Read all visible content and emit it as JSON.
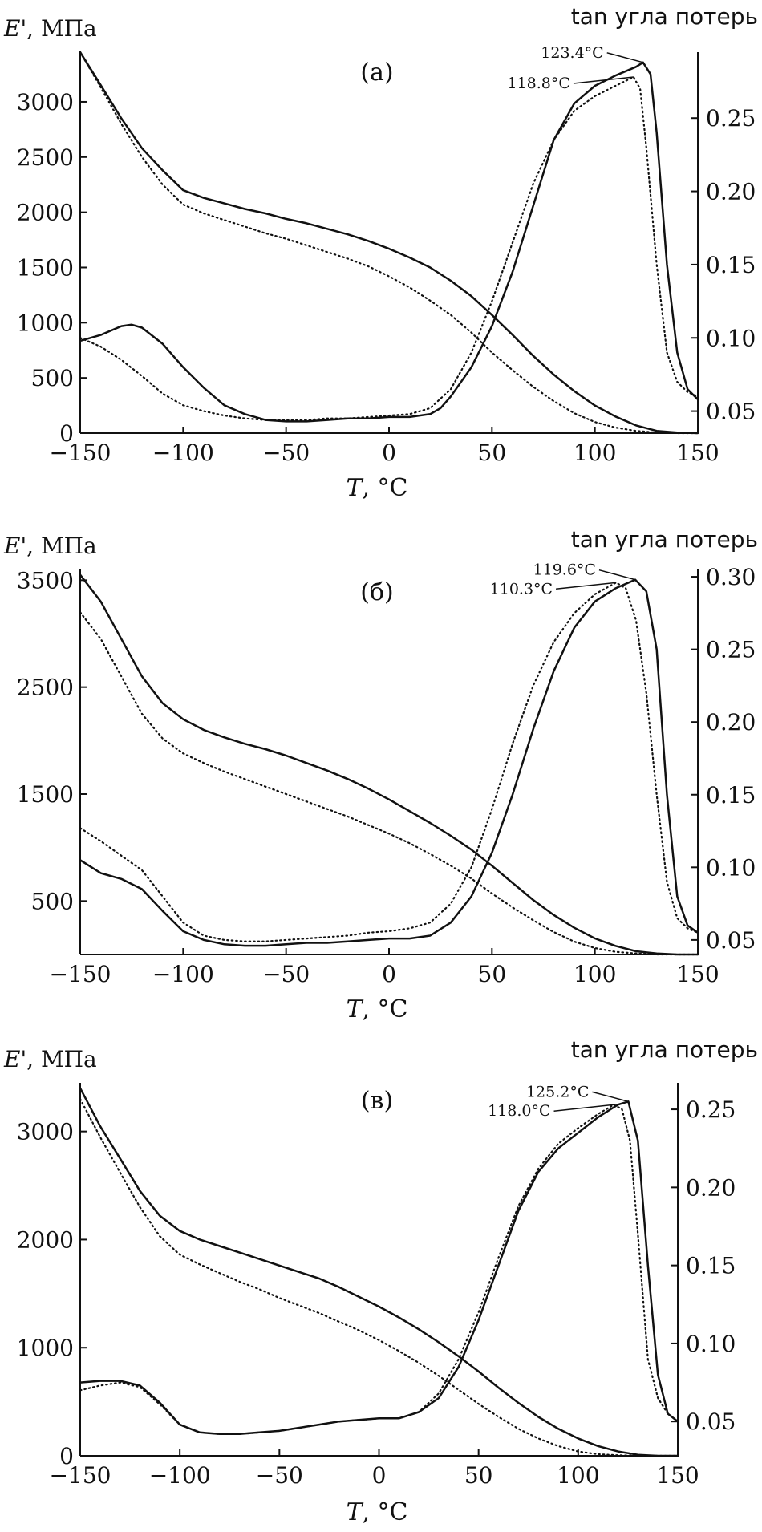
{
  "chart_data": [
    {
      "type": "line",
      "panel_label": "(а)",
      "xlabel_var": "T",
      "xlabel_unit": ", °C",
      "ylabel_var": "E'",
      "ylabel_unit": ", МПа",
      "y2label": "tan угла потерь",
      "xlim": [
        -150,
        150
      ],
      "ylim": [
        0,
        3450
      ],
      "y2lim": [
        0.035,
        0.295
      ],
      "xticks": [
        -150,
        -100,
        -50,
        0,
        50,
        100,
        150
      ],
      "yticks": [
        0,
        500,
        1000,
        1500,
        2000,
        2500,
        3000
      ],
      "y2ticks": [
        0.05,
        0.1,
        0.15,
        0.2,
        0.25
      ],
      "y2tick_labels": [
        "0.05",
        "0.10",
        "0.15",
        "0.20",
        "0.25"
      ],
      "series": [
        {
          "style": "solid",
          "axis": "left",
          "x": [
            -150,
            -140,
            -130,
            -120,
            -110,
            -100,
            -90,
            -80,
            -70,
            -60,
            -50,
            -40,
            -30,
            -20,
            -10,
            0,
            10,
            20,
            30,
            40,
            50,
            60,
            70,
            80,
            90,
            100,
            110,
            120,
            130,
            140,
            150
          ],
          "y": [
            3450,
            3150,
            2850,
            2580,
            2380,
            2200,
            2130,
            2080,
            2030,
            1990,
            1940,
            1900,
            1850,
            1800,
            1740,
            1670,
            1590,
            1500,
            1380,
            1240,
            1070,
            890,
            700,
            530,
            380,
            250,
            150,
            70,
            20,
            5,
            0
          ]
        },
        {
          "style": "dotted",
          "axis": "left",
          "x": [
            -150,
            -140,
            -130,
            -120,
            -110,
            -100,
            -90,
            -80,
            -70,
            -60,
            -50,
            -40,
            -30,
            -20,
            -10,
            0,
            10,
            20,
            30,
            40,
            50,
            60,
            70,
            80,
            90,
            100,
            110,
            120,
            130,
            140,
            150
          ],
          "y": [
            3450,
            3130,
            2800,
            2500,
            2250,
            2070,
            1990,
            1930,
            1870,
            1810,
            1760,
            1700,
            1640,
            1580,
            1510,
            1420,
            1320,
            1200,
            1070,
            910,
            730,
            570,
            420,
            290,
            180,
            100,
            50,
            20,
            5,
            0,
            0
          ]
        },
        {
          "style": "solid",
          "axis": "right",
          "x": [
            -150,
            -140,
            -130,
            -125,
            -120,
            -110,
            -100,
            -90,
            -80,
            -70,
            -60,
            -50,
            -40,
            -30,
            -20,
            -10,
            0,
            10,
            20,
            25,
            30,
            40,
            50,
            60,
            70,
            80,
            90,
            100,
            110,
            120,
            123.4,
            127,
            130,
            135,
            140,
            145,
            150
          ],
          "y": [
            0.098,
            0.102,
            0.108,
            0.109,
            0.107,
            0.096,
            0.08,
            0.066,
            0.054,
            0.048,
            0.044,
            0.043,
            0.043,
            0.044,
            0.045,
            0.045,
            0.046,
            0.046,
            0.048,
            0.052,
            0.06,
            0.08,
            0.108,
            0.145,
            0.19,
            0.235,
            0.26,
            0.272,
            0.279,
            0.285,
            0.288,
            0.28,
            0.24,
            0.15,
            0.09,
            0.065,
            0.058
          ]
        },
        {
          "style": "dotted",
          "axis": "right",
          "x": [
            -150,
            -140,
            -130,
            -120,
            -110,
            -100,
            -90,
            -80,
            -70,
            -60,
            -50,
            -40,
            -30,
            -20,
            -10,
            0,
            10,
            20,
            30,
            40,
            50,
            60,
            70,
            80,
            90,
            100,
            110,
            118.8,
            122,
            125,
            130,
            135,
            140,
            145,
            150
          ],
          "y": [
            0.1,
            0.094,
            0.085,
            0.074,
            0.062,
            0.054,
            0.05,
            0.047,
            0.045,
            0.044,
            0.044,
            0.044,
            0.045,
            0.045,
            0.046,
            0.047,
            0.048,
            0.052,
            0.065,
            0.09,
            0.125,
            0.165,
            0.205,
            0.235,
            0.255,
            0.265,
            0.272,
            0.278,
            0.27,
            0.23,
            0.15,
            0.09,
            0.07,
            0.063,
            0.06
          ]
        }
      ],
      "annotations": [
        {
          "text": "123.4°C",
          "x": 123.4,
          "y2": 0.288
        },
        {
          "text": "118.8°C",
          "x": 118.8,
          "y2": 0.278
        }
      ]
    },
    {
      "type": "line",
      "panel_label": "(б)",
      "xlabel_var": "T",
      "xlabel_unit": ", °C",
      "ylabel_var": "E'",
      "ylabel_unit": ", МПа",
      "y2label": "tan угла потерь",
      "xlim": [
        -150,
        150
      ],
      "ylim": [
        0,
        3600
      ],
      "y2lim": [
        0.04,
        0.305
      ],
      "xticks": [
        -150,
        -100,
        -50,
        0,
        50,
        100,
        150
      ],
      "yticks": [
        500,
        1500,
        2500,
        3500
      ],
      "y2ticks": [
        0.05,
        0.1,
        0.15,
        0.2,
        0.25,
        0.3
      ],
      "y2tick_labels": [
        "0.05",
        "0.10",
        "0.15",
        "0.20",
        "0.25",
        "0.30"
      ],
      "series": [
        {
          "style": "solid",
          "axis": "left",
          "x": [
            -150,
            -140,
            -130,
            -120,
            -110,
            -100,
            -90,
            -80,
            -70,
            -60,
            -50,
            -40,
            -30,
            -20,
            -10,
            0,
            10,
            20,
            30,
            40,
            50,
            60,
            70,
            80,
            90,
            100,
            110,
            120,
            130,
            140,
            150
          ],
          "y": [
            3550,
            3300,
            2950,
            2600,
            2350,
            2200,
            2100,
            2030,
            1970,
            1920,
            1860,
            1790,
            1720,
            1640,
            1550,
            1450,
            1340,
            1230,
            1110,
            980,
            830,
            670,
            510,
            370,
            250,
            150,
            80,
            30,
            10,
            0,
            0
          ]
        },
        {
          "style": "dotted",
          "axis": "left",
          "x": [
            -150,
            -140,
            -130,
            -120,
            -110,
            -100,
            -90,
            -80,
            -70,
            -60,
            -50,
            -40,
            -30,
            -20,
            -10,
            0,
            10,
            20,
            30,
            40,
            50,
            60,
            70,
            80,
            90,
            100,
            110,
            120,
            130,
            140,
            150
          ],
          "y": [
            3200,
            2950,
            2600,
            2250,
            2020,
            1880,
            1790,
            1710,
            1640,
            1570,
            1500,
            1430,
            1360,
            1290,
            1210,
            1130,
            1040,
            940,
            830,
            710,
            570,
            440,
            320,
            210,
            120,
            60,
            25,
            10,
            0,
            0,
            0
          ]
        },
        {
          "style": "solid",
          "axis": "right",
          "x": [
            -150,
            -140,
            -130,
            -120,
            -110,
            -100,
            -90,
            -80,
            -70,
            -60,
            -50,
            -40,
            -30,
            -20,
            -10,
            0,
            10,
            20,
            30,
            40,
            50,
            60,
            70,
            80,
            90,
            100,
            110,
            119.6,
            125,
            130,
            135,
            140,
            145,
            150
          ],
          "y": [
            0.105,
            0.096,
            0.092,
            0.085,
            0.07,
            0.056,
            0.05,
            0.047,
            0.046,
            0.046,
            0.047,
            0.048,
            0.048,
            0.049,
            0.05,
            0.051,
            0.051,
            0.053,
            0.062,
            0.08,
            0.11,
            0.15,
            0.195,
            0.235,
            0.265,
            0.283,
            0.292,
            0.298,
            0.29,
            0.25,
            0.15,
            0.08,
            0.06,
            0.055
          ]
        },
        {
          "style": "dotted",
          "axis": "right",
          "x": [
            -150,
            -140,
            -130,
            -120,
            -110,
            -100,
            -90,
            -80,
            -70,
            -60,
            -50,
            -40,
            -30,
            -20,
            -10,
            0,
            10,
            20,
            30,
            40,
            50,
            60,
            70,
            80,
            90,
            100,
            110.3,
            115,
            120,
            125,
            130,
            135,
            140,
            145,
            150
          ],
          "y": [
            0.127,
            0.118,
            0.108,
            0.098,
            0.08,
            0.062,
            0.053,
            0.05,
            0.049,
            0.049,
            0.05,
            0.051,
            0.052,
            0.053,
            0.055,
            0.056,
            0.058,
            0.062,
            0.075,
            0.1,
            0.14,
            0.185,
            0.225,
            0.255,
            0.275,
            0.288,
            0.296,
            0.292,
            0.27,
            0.22,
            0.15,
            0.09,
            0.065,
            0.058,
            0.055
          ]
        }
      ],
      "annotations": [
        {
          "text": "119.6°C",
          "x": 119.6,
          "y2": 0.298
        },
        {
          "text": "110.3°C",
          "x": 110.3,
          "y2": 0.296
        }
      ]
    },
    {
      "type": "line",
      "panel_label": "(в)",
      "xlabel_var": "T",
      "xlabel_unit": ", °C",
      "ylabel_var": "E'",
      "ylabel_unit": ", МПа",
      "y2label": "tan угла потерь",
      "xlim": [
        -150,
        150
      ],
      "ylim": [
        0,
        3450
      ],
      "y2lim": [
        0.028,
        0.267
      ],
      "xticks": [
        -150,
        -100,
        -50,
        0,
        50,
        100,
        150
      ],
      "yticks": [
        0,
        1000,
        2000,
        3000
      ],
      "y2ticks": [
        0.05,
        0.1,
        0.15,
        0.2,
        0.25
      ],
      "y2tick_labels": [
        "0.05",
        "0.10",
        "0.15",
        "0.20",
        "0.25"
      ],
      "series": [
        {
          "style": "solid",
          "axis": "left",
          "x": [
            -150,
            -140,
            -130,
            -120,
            -110,
            -100,
            -90,
            -80,
            -70,
            -60,
            -50,
            -40,
            -30,
            -20,
            -10,
            0,
            10,
            20,
            30,
            40,
            50,
            60,
            70,
            80,
            90,
            100,
            110,
            120,
            130,
            140,
            150
          ],
          "y": [
            3400,
            3050,
            2750,
            2450,
            2220,
            2080,
            2000,
            1940,
            1880,
            1820,
            1760,
            1700,
            1640,
            1560,
            1470,
            1380,
            1280,
            1170,
            1050,
            920,
            780,
            630,
            490,
            360,
            250,
            160,
            90,
            40,
            10,
            0,
            0
          ]
        },
        {
          "style": "dotted",
          "axis": "left",
          "x": [
            -150,
            -140,
            -130,
            -120,
            -110,
            -100,
            -90,
            -80,
            -70,
            -60,
            -50,
            -40,
            -30,
            -20,
            -10,
            0,
            10,
            20,
            30,
            40,
            50,
            60,
            70,
            80,
            90,
            100,
            110,
            120,
            130,
            140,
            150
          ],
          "y": [
            3300,
            2950,
            2620,
            2300,
            2030,
            1860,
            1770,
            1690,
            1610,
            1540,
            1460,
            1390,
            1320,
            1240,
            1160,
            1070,
            970,
            860,
            740,
            610,
            480,
            360,
            250,
            160,
            90,
            40,
            15,
            5,
            0,
            0,
            0
          ]
        },
        {
          "style": "solid",
          "axis": "right",
          "x": [
            -150,
            -140,
            -130,
            -120,
            -110,
            -100,
            -90,
            -80,
            -70,
            -60,
            -50,
            -40,
            -30,
            -20,
            -10,
            0,
            10,
            20,
            30,
            40,
            50,
            60,
            70,
            80,
            90,
            100,
            110,
            120,
            125.2,
            130,
            135,
            140,
            145,
            150
          ],
          "y": [
            0.075,
            0.076,
            0.076,
            0.073,
            0.062,
            0.048,
            0.043,
            0.042,
            0.042,
            0.043,
            0.044,
            0.046,
            0.048,
            0.05,
            0.051,
            0.052,
            0.052,
            0.056,
            0.065,
            0.085,
            0.115,
            0.15,
            0.185,
            0.21,
            0.225,
            0.235,
            0.245,
            0.253,
            0.255,
            0.23,
            0.15,
            0.08,
            0.055,
            0.05
          ]
        },
        {
          "style": "dotted",
          "axis": "right",
          "x": [
            -150,
            -140,
            -130,
            -120,
            -110,
            -100,
            -90,
            -80,
            -70,
            -60,
            -50,
            -40,
            -30,
            -20,
            -10,
            0,
            10,
            20,
            30,
            40,
            50,
            60,
            70,
            80,
            90,
            100,
            110,
            118,
            122,
            126,
            130,
            135,
            140,
            145,
            150
          ],
          "y": [
            0.07,
            0.073,
            0.075,
            0.072,
            0.061,
            0.048,
            0.043,
            0.042,
            0.042,
            0.043,
            0.044,
            0.046,
            0.048,
            0.05,
            0.051,
            0.052,
            0.052,
            0.056,
            0.068,
            0.09,
            0.12,
            0.155,
            0.188,
            0.212,
            0.228,
            0.238,
            0.247,
            0.253,
            0.25,
            0.23,
            0.17,
            0.09,
            0.065,
            0.055,
            0.05
          ]
        }
      ],
      "annotations": [
        {
          "text": "125.2°C",
          "x": 125.2,
          "y2": 0.255
        },
        {
          "text": "118.0°C",
          "x": 118.0,
          "y2": 0.253
        }
      ]
    }
  ]
}
